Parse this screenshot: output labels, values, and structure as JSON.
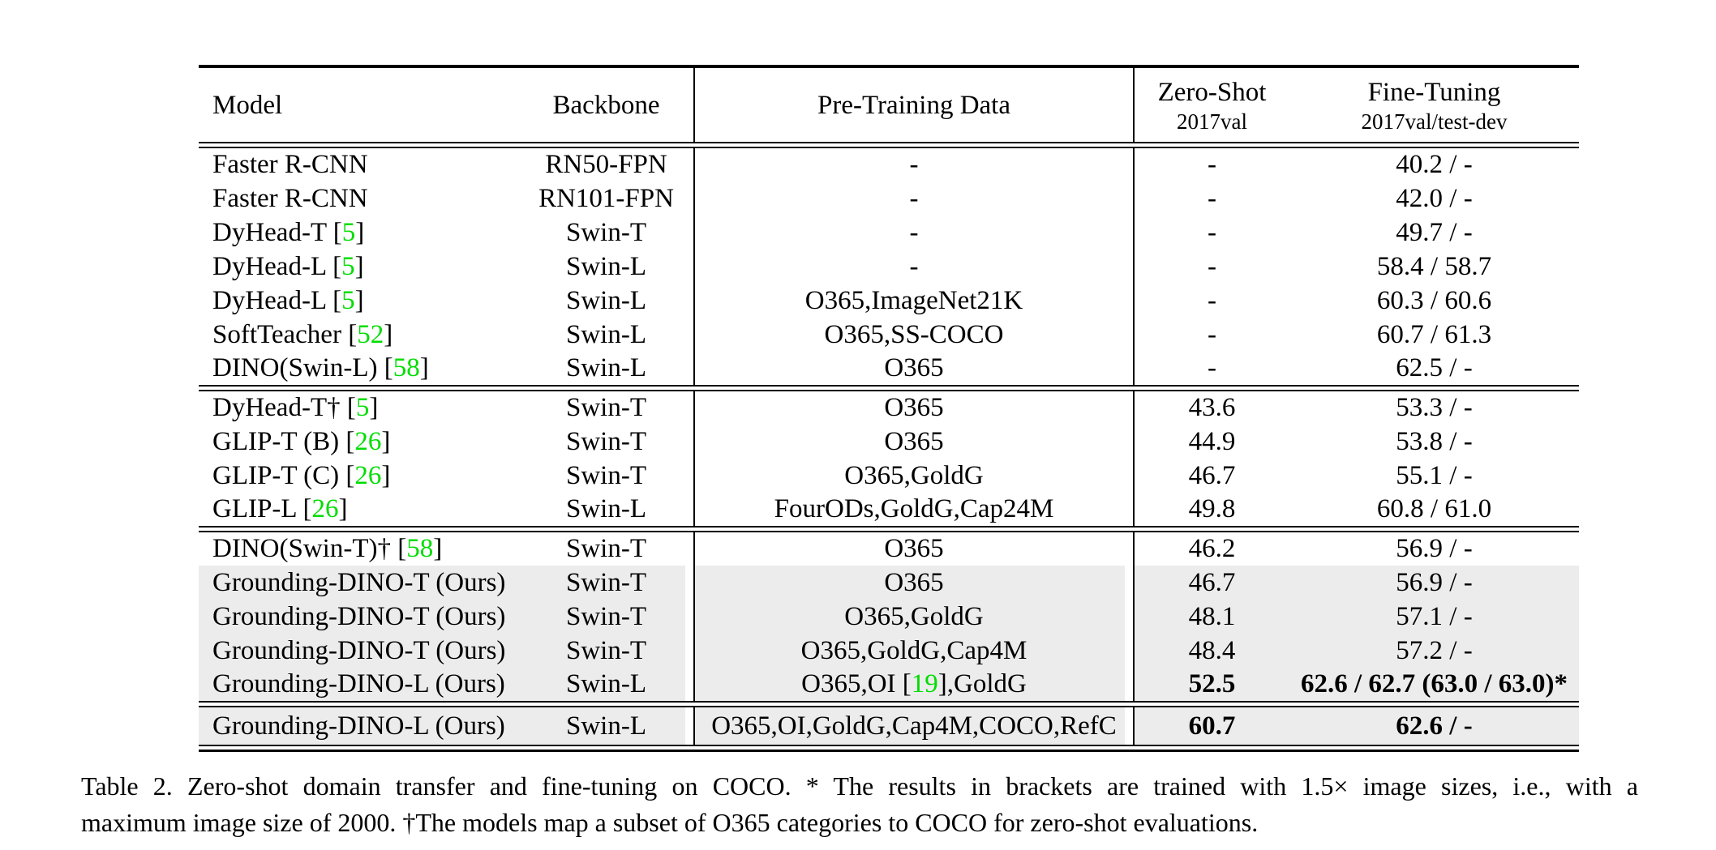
{
  "colors": {
    "citation_green": "#00dd00",
    "row_shade": "#ececec",
    "rule": "#000000"
  },
  "table": {
    "cite_open": "[",
    "cite_close": "]",
    "headers": {
      "model": "Model",
      "backbone": "Backbone",
      "pretraining": "Pre-Training Data",
      "zeroshot_line1": "Zero-Shot",
      "zeroshot_line2": "2017val",
      "finetuning_line1": "Fine-Tuning",
      "finetuning_line2": "2017val/test-dev"
    },
    "rows": [
      {
        "group": 1,
        "shaded": false,
        "bold": false,
        "tall": false,
        "model": [
          {
            "t": "Faster R-CNN"
          }
        ],
        "backbone": "RN50-FPN",
        "pretrain": [
          {
            "t": "-"
          }
        ],
        "zeroshot": "-",
        "finetune": "40.2 / -"
      },
      {
        "group": 1,
        "shaded": false,
        "bold": false,
        "tall": false,
        "model": [
          {
            "t": "Faster R-CNN"
          }
        ],
        "backbone": "RN101-FPN",
        "pretrain": [
          {
            "t": "-"
          }
        ],
        "zeroshot": "-",
        "finetune": "42.0 / -"
      },
      {
        "group": 1,
        "shaded": false,
        "bold": false,
        "tall": false,
        "model": [
          {
            "t": "DyHead-T "
          },
          {
            "c": "5"
          }
        ],
        "backbone": "Swin-T",
        "pretrain": [
          {
            "t": "-"
          }
        ],
        "zeroshot": "-",
        "finetune": "49.7 / -"
      },
      {
        "group": 1,
        "shaded": false,
        "bold": false,
        "tall": false,
        "model": [
          {
            "t": "DyHead-L "
          },
          {
            "c": "5"
          }
        ],
        "backbone": "Swin-L",
        "pretrain": [
          {
            "t": "-"
          }
        ],
        "zeroshot": "-",
        "finetune": "58.4 / 58.7"
      },
      {
        "group": 1,
        "shaded": false,
        "bold": false,
        "tall": false,
        "model": [
          {
            "t": "DyHead-L "
          },
          {
            "c": "5"
          }
        ],
        "backbone": "Swin-L",
        "pretrain": [
          {
            "t": "O365,ImageNet21K"
          }
        ],
        "zeroshot": "-",
        "finetune": "60.3 / 60.6"
      },
      {
        "group": 1,
        "shaded": false,
        "bold": false,
        "tall": false,
        "model": [
          {
            "t": "SoftTeacher "
          },
          {
            "c": "52"
          }
        ],
        "backbone": "Swin-L",
        "pretrain": [
          {
            "t": "O365,SS-COCO"
          }
        ],
        "zeroshot": "-",
        "finetune": "60.7 / 61.3"
      },
      {
        "group": 1,
        "shaded": false,
        "bold": false,
        "tall": false,
        "model": [
          {
            "t": "DINO(Swin-L) "
          },
          {
            "c": "58"
          }
        ],
        "backbone": "Swin-L",
        "pretrain": [
          {
            "t": "O365"
          }
        ],
        "zeroshot": "-",
        "finetune": "62.5 / -"
      },
      {
        "group": 2,
        "shaded": false,
        "bold": false,
        "tall": false,
        "model": [
          {
            "t": "DyHead-T† "
          },
          {
            "c": "5"
          }
        ],
        "backbone": "Swin-T",
        "pretrain": [
          {
            "t": "O365"
          }
        ],
        "zeroshot": "43.6",
        "finetune": "53.3 / -"
      },
      {
        "group": 2,
        "shaded": false,
        "bold": false,
        "tall": false,
        "model": [
          {
            "t": "GLIP-T (B) "
          },
          {
            "c": "26"
          }
        ],
        "backbone": "Swin-T",
        "pretrain": [
          {
            "t": "O365"
          }
        ],
        "zeroshot": "44.9",
        "finetune": "53.8 / -"
      },
      {
        "group": 2,
        "shaded": false,
        "bold": false,
        "tall": false,
        "model": [
          {
            "t": "GLIP-T (C) "
          },
          {
            "c": "26"
          }
        ],
        "backbone": "Swin-T",
        "pretrain": [
          {
            "t": "O365,GoldG"
          }
        ],
        "zeroshot": "46.7",
        "finetune": "55.1 / -"
      },
      {
        "group": 2,
        "shaded": false,
        "bold": false,
        "tall": false,
        "model": [
          {
            "t": "GLIP-L "
          },
          {
            "c": "26"
          }
        ],
        "backbone": "Swin-L",
        "pretrain": [
          {
            "t": "FourODs,GoldG,Cap24M"
          }
        ],
        "zeroshot": "49.8",
        "finetune": "60.8 / 61.0"
      },
      {
        "group": 3,
        "shaded": false,
        "bold": false,
        "tall": false,
        "model": [
          {
            "t": "DINO(Swin-T)† "
          },
          {
            "c": "58"
          }
        ],
        "backbone": "Swin-T",
        "pretrain": [
          {
            "t": "O365"
          }
        ],
        "zeroshot": "46.2",
        "finetune": "56.9 / -"
      },
      {
        "group": 3,
        "shaded": true,
        "bold": false,
        "tall": false,
        "model": [
          {
            "t": "Grounding-DINO-T (Ours)"
          }
        ],
        "backbone": "Swin-T",
        "pretrain": [
          {
            "t": "O365"
          }
        ],
        "zeroshot": "46.7",
        "finetune": "56.9 / -"
      },
      {
        "group": 3,
        "shaded": true,
        "bold": false,
        "tall": false,
        "model": [
          {
            "t": "Grounding-DINO-T (Ours)"
          }
        ],
        "backbone": "Swin-T",
        "pretrain": [
          {
            "t": "O365,GoldG"
          }
        ],
        "zeroshot": "48.1",
        "finetune": "57.1 / -"
      },
      {
        "group": 3,
        "shaded": true,
        "bold": false,
        "tall": false,
        "model": [
          {
            "t": "Grounding-DINO-T (Ours)"
          }
        ],
        "backbone": "Swin-T",
        "pretrain": [
          {
            "t": "O365,GoldG,Cap4M"
          }
        ],
        "zeroshot": "48.4",
        "finetune": "57.2 / -"
      },
      {
        "group": 3,
        "shaded": true,
        "bold": true,
        "tall": false,
        "model": [
          {
            "t": "Grounding-DINO-L (Ours)"
          }
        ],
        "backbone": "Swin-L",
        "pretrain": [
          {
            "t": "O365,OI "
          },
          {
            "c": "19"
          },
          {
            "t": ",GoldG"
          }
        ],
        "zeroshot": "52.5",
        "finetune": "62.6 / 62.7 (63.0 / 63.0)*"
      },
      {
        "group": 4,
        "shaded": true,
        "bold": true,
        "tall": true,
        "model": [
          {
            "t": "Grounding-DINO-L (Ours)"
          }
        ],
        "backbone": "Swin-L",
        "pretrain": [
          {
            "t": "O365,OI,GoldG,Cap4M,COCO,RefC"
          }
        ],
        "zeroshot": "60.7",
        "finetune": "62.6 / -"
      }
    ]
  },
  "caption": {
    "line1": "Table 2.  Zero-shot domain transfer and fine-tuning on COCO. * The results in brackets are trained with 1.5× image sizes, i.e., with a",
    "line2": "maximum image size of 2000. †The models map a subset of O365 categories to COCO for zero-shot evaluations."
  }
}
